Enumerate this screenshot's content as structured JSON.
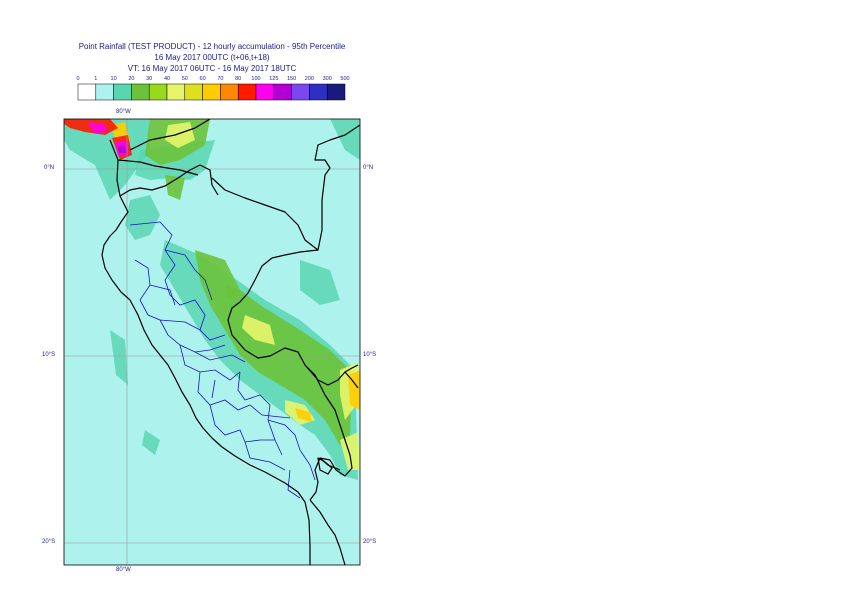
{
  "header": {
    "title_line1": "Point Rainfall (TEST PRODUCT) - 12 hourly accumulation - 95th Percentile",
    "title_line2": "16 May 2017 00UTC (t+06,t+18)",
    "title_line3": "VT: 16 May 2017 06UTC - 16 May 2017 18UTC"
  },
  "legend": {
    "thresholds": [
      "0",
      "1",
      "10",
      "20",
      "30",
      "40",
      "50",
      "60",
      "70",
      "80",
      "100",
      "125",
      "150",
      "200",
      "300",
      "500"
    ],
    "colors": [
      "#ffffff",
      "#aef2ee",
      "#59d6b0",
      "#6cc23a",
      "#99d91c",
      "#e7f56b",
      "#dfe01d",
      "#ffcc00",
      "#ff8800",
      "#ff1a00",
      "#ff00ee",
      "#b400d4",
      "#7a48ef",
      "#2d30c2",
      "#1a1a7a"
    ]
  },
  "map": {
    "top_lon_label": "80°W",
    "bottom_lon_label": "80°W",
    "left_lat_labels": [
      "0°N",
      "10°S",
      "20°S"
    ],
    "right_lat_labels": [
      "0°N",
      "10°S",
      "20°S"
    ],
    "colors": {
      "ocean": "#aef2ee",
      "teal": "#59d6b0",
      "green": "#6cc23a",
      "lime": "#99d91c",
      "yellow": "#e7f56b",
      "orange": "#ffcc00",
      "red": "#ff1a00",
      "magenta": "#ff00ee",
      "purple": "#b400d4",
      "border": "#000000",
      "admin": "#1414c8",
      "grid": "#9a9a9a"
    }
  }
}
